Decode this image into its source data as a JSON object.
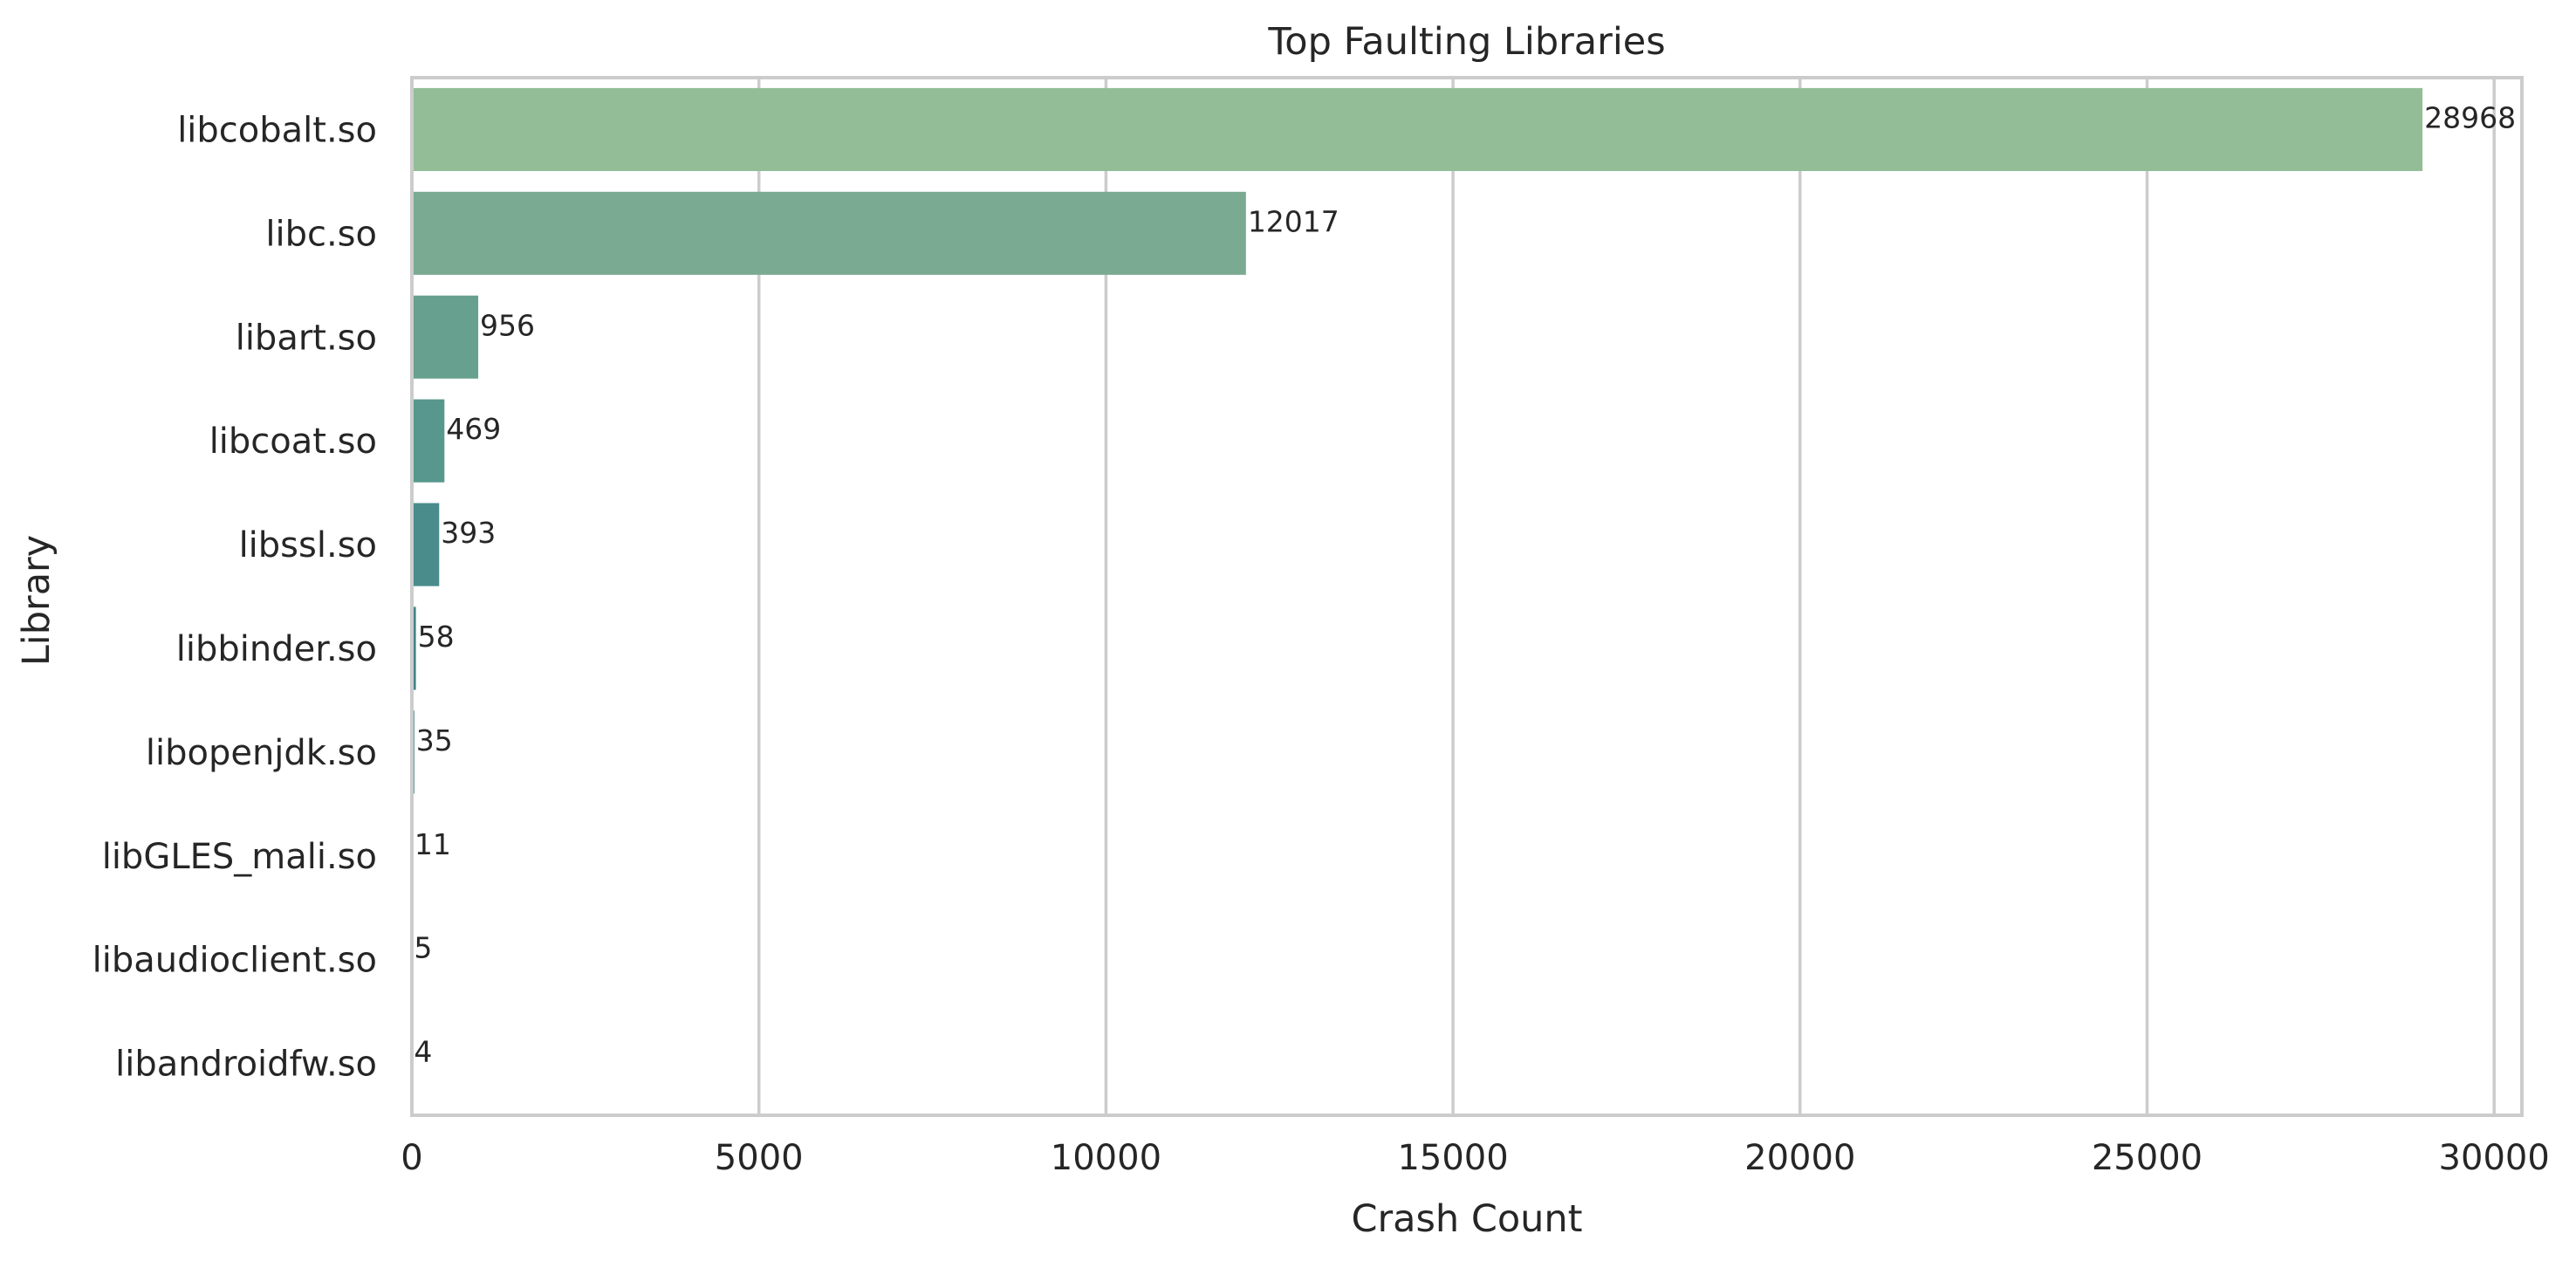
{
  "chart_data": {
    "type": "bar",
    "orientation": "horizontal",
    "title": "Top Faulting Libraries",
    "xlabel": "Crash Count",
    "ylabel": "Library",
    "categories": [
      "libcobalt.so",
      "libc.so",
      "libart.so",
      "libcoat.so",
      "libssl.so",
      "libbinder.so",
      "libopenjdk.so",
      "libGLES_mali.so",
      "libaudioclient.so",
      "libandroidfw.so"
    ],
    "values": [
      28968,
      12017,
      956,
      469,
      393,
      58,
      35,
      11,
      5,
      4
    ],
    "data_labels": [
      "28968",
      "12017",
      "956",
      "469",
      "393",
      "58",
      "35",
      "11",
      "5",
      "4"
    ],
    "xlim": [
      0,
      30400
    ],
    "xticks": [
      0,
      5000,
      10000,
      15000,
      20000,
      25000,
      30000
    ],
    "xtick_labels": [
      "0",
      "5000",
      "10000",
      "15000",
      "20000",
      "25000",
      "30000"
    ],
    "grid": "vertical",
    "colors": [
      "#93bd96",
      "#7aab92",
      "#67a08e",
      "#57978e",
      "#4a8b8b",
      "#438588",
      "#3f7f86",
      "#3b7884",
      "#387282",
      "#356b80"
    ]
  }
}
